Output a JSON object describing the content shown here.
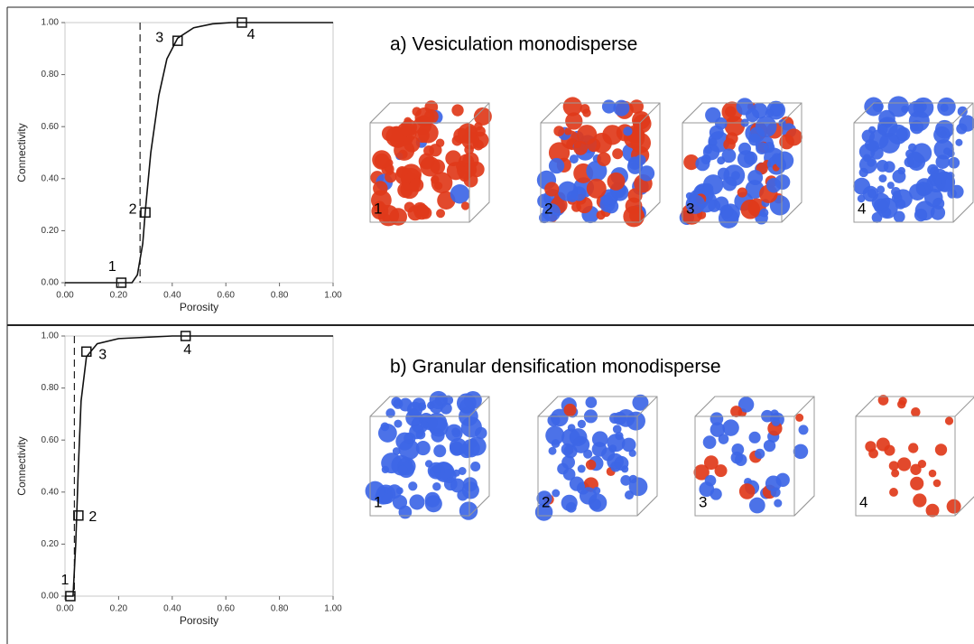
{
  "chart_data": [
    {
      "type": "line",
      "title": "a)  Vesiculation monodisperse",
      "x_label": "Porosity",
      "y_label": "Connectivity",
      "x": [
        0,
        0.1,
        0.2,
        0.25,
        0.27,
        0.29,
        0.3,
        0.32,
        0.35,
        0.38,
        0.42,
        0.48,
        0.55,
        0.62,
        0.8,
        1.0
      ],
      "y": [
        0,
        0,
        0,
        0,
        0.03,
        0.15,
        0.28,
        0.5,
        0.72,
        0.86,
        0.94,
        0.98,
        0.995,
        1.0,
        1.0,
        1.0
      ],
      "color": "#111111",
      "threshold_x": 0.28,
      "points": {
        "x": [
          0.21,
          0.3,
          0.42,
          0.66
        ],
        "y": [
          0,
          0.27,
          0.93,
          1.0
        ],
        "labels": [
          "1",
          "2",
          "3",
          "4"
        ]
      },
      "xlim": [
        0,
        1
      ],
      "ylim": [
        0,
        1
      ],
      "xticks": [
        {
          "value": 0,
          "label": "0.00"
        },
        {
          "value": 0.2,
          "label": "0.20"
        },
        {
          "value": 0.4,
          "label": "0.40"
        },
        {
          "value": 0.6,
          "label": "0.60"
        },
        {
          "value": 0.8,
          "label": "0.80"
        },
        {
          "value": 1,
          "label": "1.00"
        }
      ],
      "yticks": [
        {
          "value": 0,
          "label": "0.00"
        },
        {
          "value": 0.2,
          "label": "0.20"
        },
        {
          "value": 0.4,
          "label": "0.40"
        },
        {
          "value": 0.6,
          "label": "0.60"
        },
        {
          "value": 0.8,
          "label": "0.80"
        },
        {
          "value": 1,
          "label": "1.00"
        }
      ],
      "panel_labels": [
        "1",
        "2",
        "3",
        "4"
      ]
    },
    {
      "type": "line",
      "title": "b)  Granular densification monodisperse",
      "x_label": "Porosity",
      "y_label": "Connectivity",
      "x": [
        0,
        0.03,
        0.04,
        0.045,
        0.05,
        0.06,
        0.08,
        0.12,
        0.2,
        0.4,
        1.0
      ],
      "y": [
        0,
        0,
        0.2,
        0.35,
        0.5,
        0.75,
        0.92,
        0.97,
        0.99,
        1.0,
        1.0
      ],
      "color": "#111111",
      "threshold_x": 0.035,
      "points": {
        "x": [
          0.02,
          0.05,
          0.08,
          0.45
        ],
        "y": [
          0,
          0.31,
          0.94,
          1.0
        ],
        "labels": [
          "1",
          "2",
          "3",
          "4"
        ]
      },
      "xlim": [
        0,
        1
      ],
      "ylim": [
        0,
        1
      ],
      "xticks": [
        {
          "value": 0,
          "label": "0.00"
        },
        {
          "value": 0.2,
          "label": "0.20"
        },
        {
          "value": 0.4,
          "label": "0.40"
        },
        {
          "value": 0.6,
          "label": "0.60"
        },
        {
          "value": 0.8,
          "label": "0.80"
        },
        {
          "value": 1,
          "label": "1.00"
        }
      ],
      "yticks": [
        {
          "value": 0,
          "label": "0.00"
        },
        {
          "value": 0.2,
          "label": "0.20"
        },
        {
          "value": 0.4,
          "label": "0.40"
        },
        {
          "value": 0.6,
          "label": "0.60"
        },
        {
          "value": 0.8,
          "label": "0.80"
        },
        {
          "value": 1,
          "label": "1.00"
        }
      ],
      "panel_labels": [
        "1",
        "2",
        "3",
        "4"
      ]
    }
  ]
}
